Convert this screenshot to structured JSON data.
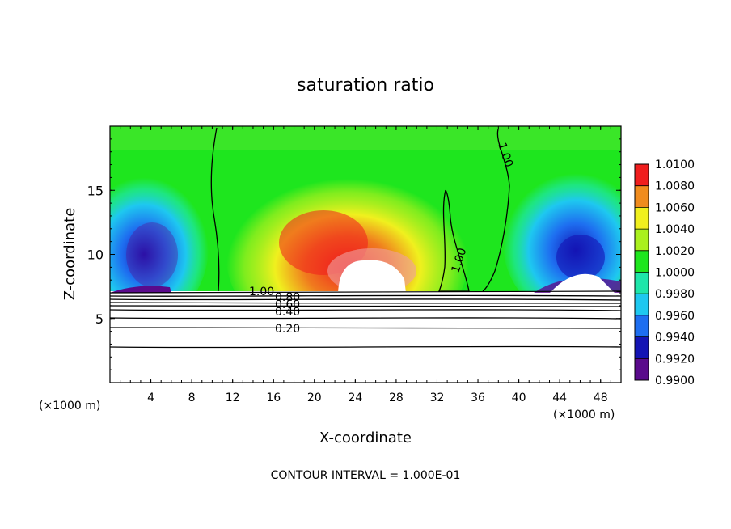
{
  "chart_data": {
    "type": "heatmap",
    "title": "saturation ratio",
    "xlabel": "X-coordinate",
    "ylabel": "Z-coordinate",
    "x_unit_left": "(×1000 m)",
    "x_unit_right": "(×1000 m)",
    "footer": "CONTOUR INTERVAL = 1.000E-01",
    "xlim": [
      0,
      50
    ],
    "ylim": [
      0,
      20
    ],
    "x_ticks": [
      "4",
      "8",
      "12",
      "16",
      "20",
      "24",
      "28",
      "32",
      "36",
      "40",
      "44",
      "48"
    ],
    "y_ticks": [
      "5",
      "10",
      "15"
    ],
    "colorbar": {
      "levels": [
        "0.9900",
        "0.9920",
        "0.9940",
        "0.9960",
        "0.9980",
        "1.0000",
        "1.0020",
        "1.0040",
        "1.0060",
        "1.0080",
        "1.0100"
      ],
      "colors": [
        "#5a0a8c",
        "#1414b4",
        "#1e6ef0",
        "#1ec8f0",
        "#1ee6aa",
        "#1ee61e",
        "#aaf01e",
        "#f0f01e",
        "#f08c1e",
        "#f01e1e",
        "#f0a0a0"
      ]
    },
    "contour_labels": [
      "1.00",
      "1.00",
      "1.00",
      "0.80",
      "0.60",
      "0.40",
      "0.20"
    ]
  }
}
